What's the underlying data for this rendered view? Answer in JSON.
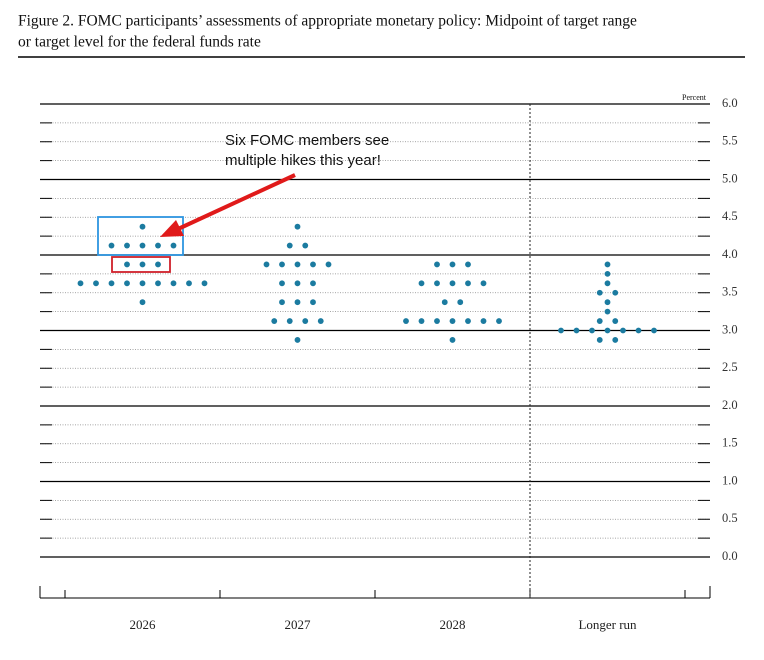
{
  "chart_data": {
    "type": "dot",
    "title": "Figure 2. FOMC participants’ assessments of appropriate monetary policy: Midpoint of target range",
    "subtitle": "or target level for the federal funds rate",
    "y_unit_label": "Percent",
    "annotation": [
      "Six FOMC members see",
      "multiple hikes this year!"
    ],
    "categories": [
      "2026",
      "2027",
      "2028",
      "Longer run"
    ],
    "color": "#1b7ba0",
    "dots": [
      [
        {
          "value": 4.375,
          "count": 1
        },
        {
          "value": 4.125,
          "count": 5
        },
        {
          "value": 3.875,
          "count": 3
        },
        {
          "value": 3.625,
          "count": 9
        },
        {
          "value": 3.375,
          "count": 1
        }
      ],
      [
        {
          "value": 4.375,
          "count": 1
        },
        {
          "value": 4.125,
          "count": 2
        },
        {
          "value": 3.875,
          "count": 5
        },
        {
          "value": 3.625,
          "count": 3
        },
        {
          "value": 3.375,
          "count": 3
        },
        {
          "value": 3.125,
          "count": 4
        },
        {
          "value": 2.875,
          "count": 1
        }
      ],
      [
        {
          "value": 3.875,
          "count": 3
        },
        {
          "value": 3.625,
          "count": 5
        },
        {
          "value": 3.375,
          "count": 2
        },
        {
          "value": 3.125,
          "count": 7
        },
        {
          "value": 2.875,
          "count": 1
        }
      ],
      [
        {
          "value": 3.875,
          "count": 1
        },
        {
          "value": 3.75,
          "count": 1
        },
        {
          "value": 3.625,
          "count": 1
        },
        {
          "value": 3.5,
          "count": 2
        },
        {
          "value": 3.375,
          "count": 1
        },
        {
          "value": 3.25,
          "count": 1
        },
        {
          "value": 3.125,
          "count": 2
        },
        {
          "value": 3.0,
          "count": 7
        },
        {
          "value": 2.875,
          "count": 2
        }
      ]
    ],
    "ylim": [
      0,
      6
    ],
    "yticks": [
      {
        "value": 0,
        "label": "0.0"
      },
      {
        "value": 0.5,
        "label": "0.5"
      },
      {
        "value": 1,
        "label": "1.0"
      },
      {
        "value": 1.5,
        "label": "1.5"
      },
      {
        "value": 2,
        "label": "2.0"
      },
      {
        "value": 2.5,
        "label": "2.5"
      },
      {
        "value": 3,
        "label": "3.0"
      },
      {
        "value": 3.5,
        "label": "3.5"
      },
      {
        "value": 4,
        "label": "4.0"
      },
      {
        "value": 4.5,
        "label": "4.5"
      },
      {
        "value": 5,
        "label": "5.0"
      },
      {
        "value": 5.5,
        "label": "5.5"
      },
      {
        "value": 6,
        "label": "6.0"
      }
    ],
    "minor_yticks": [
      0.25,
      0.75,
      1.25,
      1.75,
      2.25,
      2.75,
      3.25,
      3.75,
      4.25,
      4.75,
      5.25,
      5.75
    ],
    "grid": true
  }
}
